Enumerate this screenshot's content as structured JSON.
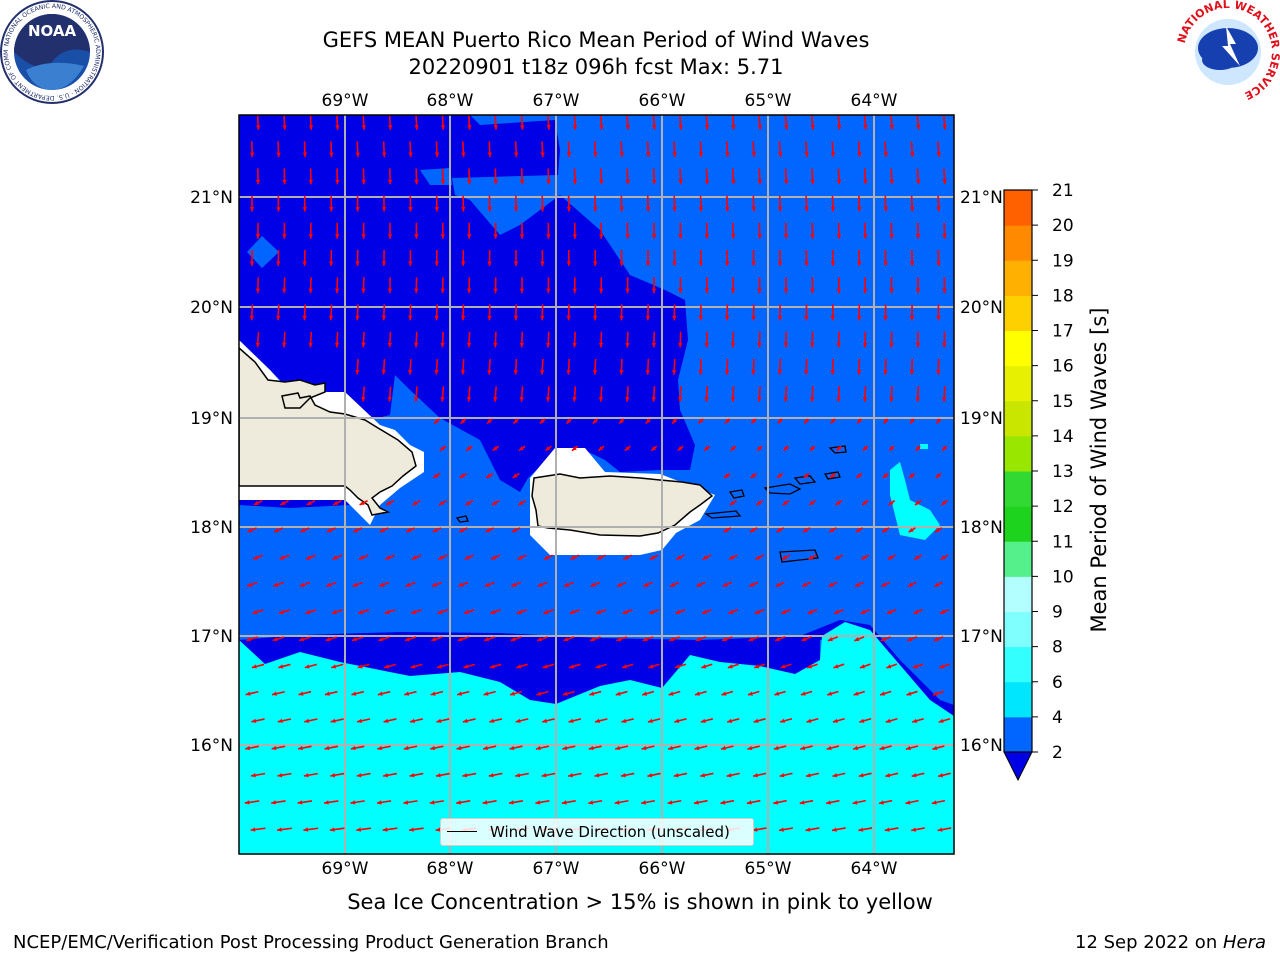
{
  "header": {
    "title_line1": "GEFS MEAN Puerto Rico Mean Period of Wind Waves",
    "title_line2": "20220901 t18z 096h fcst   Max: 5.71"
  },
  "map": {
    "lon_labels": [
      "69°W",
      "68°W",
      "67°W",
      "66°W",
      "65°W",
      "64°W"
    ],
    "lat_labels": [
      "21°N",
      "20°N",
      "19°N",
      "18°N",
      "17°N",
      "16°N"
    ],
    "colors": {
      "deep_blue": "#0000e6",
      "mid_blue": "#0066ff",
      "cyan": "#00ffff",
      "light_cyan": "#66ffff",
      "land": "#efebdc",
      "grid": "#b0b0b0",
      "arrow": "#ff0000"
    }
  },
  "legend": {
    "label": "Wind Wave Direction (unscaled)"
  },
  "colorbar": {
    "label": "Mean Period of Wind Waves [s]",
    "ticks": [
      "2",
      "4",
      "6",
      "8",
      "9",
      "10",
      "11",
      "12",
      "13",
      "14",
      "15",
      "16",
      "17",
      "18",
      "19",
      "20",
      "21"
    ],
    "colors": [
      "#0066ff",
      "#00e6ff",
      "#33ffff",
      "#80ffff",
      "#b3ffff",
      "#55f08c",
      "#1ed31e",
      "#33d933",
      "#99e600",
      "#c8e600",
      "#e6f000",
      "#ffff00",
      "#ffd000",
      "#ffb000",
      "#ff8a00",
      "#ff6000",
      "#ff3a00",
      "#ff0000"
    ],
    "extend_color": "#0000e6"
  },
  "notes": {
    "sea_ice": "Sea Ice Concentration > 15% is shown in pink to yellow"
  },
  "footer": {
    "left": "NCEP/EMC/Verification Post Processing Product Generation Branch",
    "right_prefix": "12 Sep 2022 on ",
    "right_host": "Hera"
  },
  "logos": {
    "noaa": "NOAA",
    "noaa_ring": "NATIONAL OCEANIC AND ATMOSPHERIC ADMINISTRATION · U.S. DEPARTMENT OF COMMERCE",
    "nws_ring": "NATIONAL WEATHER SERVICE"
  }
}
